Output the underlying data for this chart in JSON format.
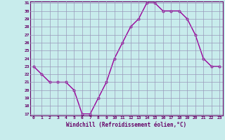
{
  "hours": [
    0,
    1,
    2,
    3,
    4,
    5,
    6,
    7,
    8,
    9,
    10,
    11,
    12,
    13,
    14,
    15,
    16,
    17,
    18,
    19,
    20,
    21,
    22,
    23
  ],
  "windchill": [
    23,
    22,
    21,
    21,
    21,
    20,
    17,
    17,
    19,
    21,
    24,
    26,
    28,
    29,
    31,
    31,
    30,
    30,
    30,
    29,
    27,
    24,
    23,
    23
  ],
  "line_color": "#990099",
  "marker": "D",
  "marker_size": 2.2,
  "bg_color": "#c8ecec",
  "grid_color": "#9999bb",
  "xlabel": "Windchill (Refroidissement éolien,°C)",
  "xlabel_color": "#660066",
  "tick_color": "#660066",
  "axis_color": "#660066",
  "ylim": [
    17,
    31
  ],
  "xlim": [
    0,
    23
  ],
  "yticks": [
    17,
    18,
    19,
    20,
    21,
    22,
    23,
    24,
    25,
    26,
    27,
    28,
    29,
    30,
    31
  ],
  "xticks": [
    0,
    1,
    2,
    3,
    4,
    5,
    6,
    7,
    8,
    9,
    10,
    11,
    12,
    13,
    14,
    15,
    16,
    17,
    18,
    19,
    20,
    21,
    22,
    23
  ],
  "line_width": 1.0
}
